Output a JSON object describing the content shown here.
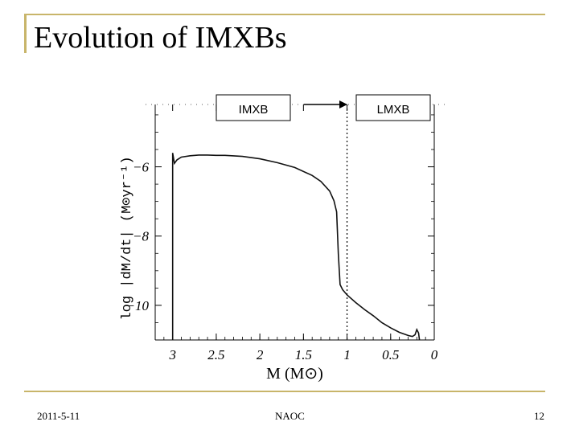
{
  "slide": {
    "title": "Evolution of IMXBs",
    "footer_date": "2011-5-11",
    "footer_center": "NAOC",
    "page_number": "12",
    "accent_color": "#c8b56a"
  },
  "chart_data": {
    "type": "line",
    "xlabel": "M (M⊙)",
    "ylabel": "log |dM/dt| (M⊙yr⁻¹)",
    "x_reversed": true,
    "xlim": [
      3.2,
      0
    ],
    "ylim": [
      -11,
      -4.2
    ],
    "xticks": [
      3,
      2.5,
      2,
      1.5,
      1,
      0.5,
      0
    ],
    "xtick_labels": [
      "3",
      "2.5",
      "2",
      "1.5",
      "1",
      "0.5",
      "0"
    ],
    "yticks": [
      -6,
      -8,
      -10
    ],
    "ytick_labels": [
      "−6",
      "−8",
      "−10"
    ],
    "annotations": {
      "left_box": "IMXB",
      "right_box": "LMXB"
    },
    "divider_x": 1.0,
    "series": [
      {
        "x": [
          3.0,
          3.0,
          2.98,
          2.95,
          2.9,
          2.8,
          2.7,
          2.6,
          2.5,
          2.4,
          2.2,
          2.0,
          1.8,
          1.6,
          1.4,
          1.3,
          1.2,
          1.15,
          1.12,
          1.1,
          1.08,
          1.05,
          1.0,
          0.9,
          0.8,
          0.7,
          0.6,
          0.5,
          0.4,
          0.3,
          0.25,
          0.22,
          0.2,
          0.18,
          0.17
        ],
        "y": [
          -11,
          -5.6,
          -5.9,
          -5.8,
          -5.72,
          -5.68,
          -5.66,
          -5.66,
          -5.67,
          -5.67,
          -5.7,
          -5.77,
          -5.88,
          -6.02,
          -6.25,
          -6.42,
          -6.7,
          -6.98,
          -7.3,
          -8.5,
          -9.4,
          -9.55,
          -9.7,
          -9.92,
          -10.12,
          -10.3,
          -10.5,
          -10.65,
          -10.78,
          -10.87,
          -10.9,
          -10.85,
          -10.7,
          -10.8,
          -11
        ]
      }
    ]
  }
}
